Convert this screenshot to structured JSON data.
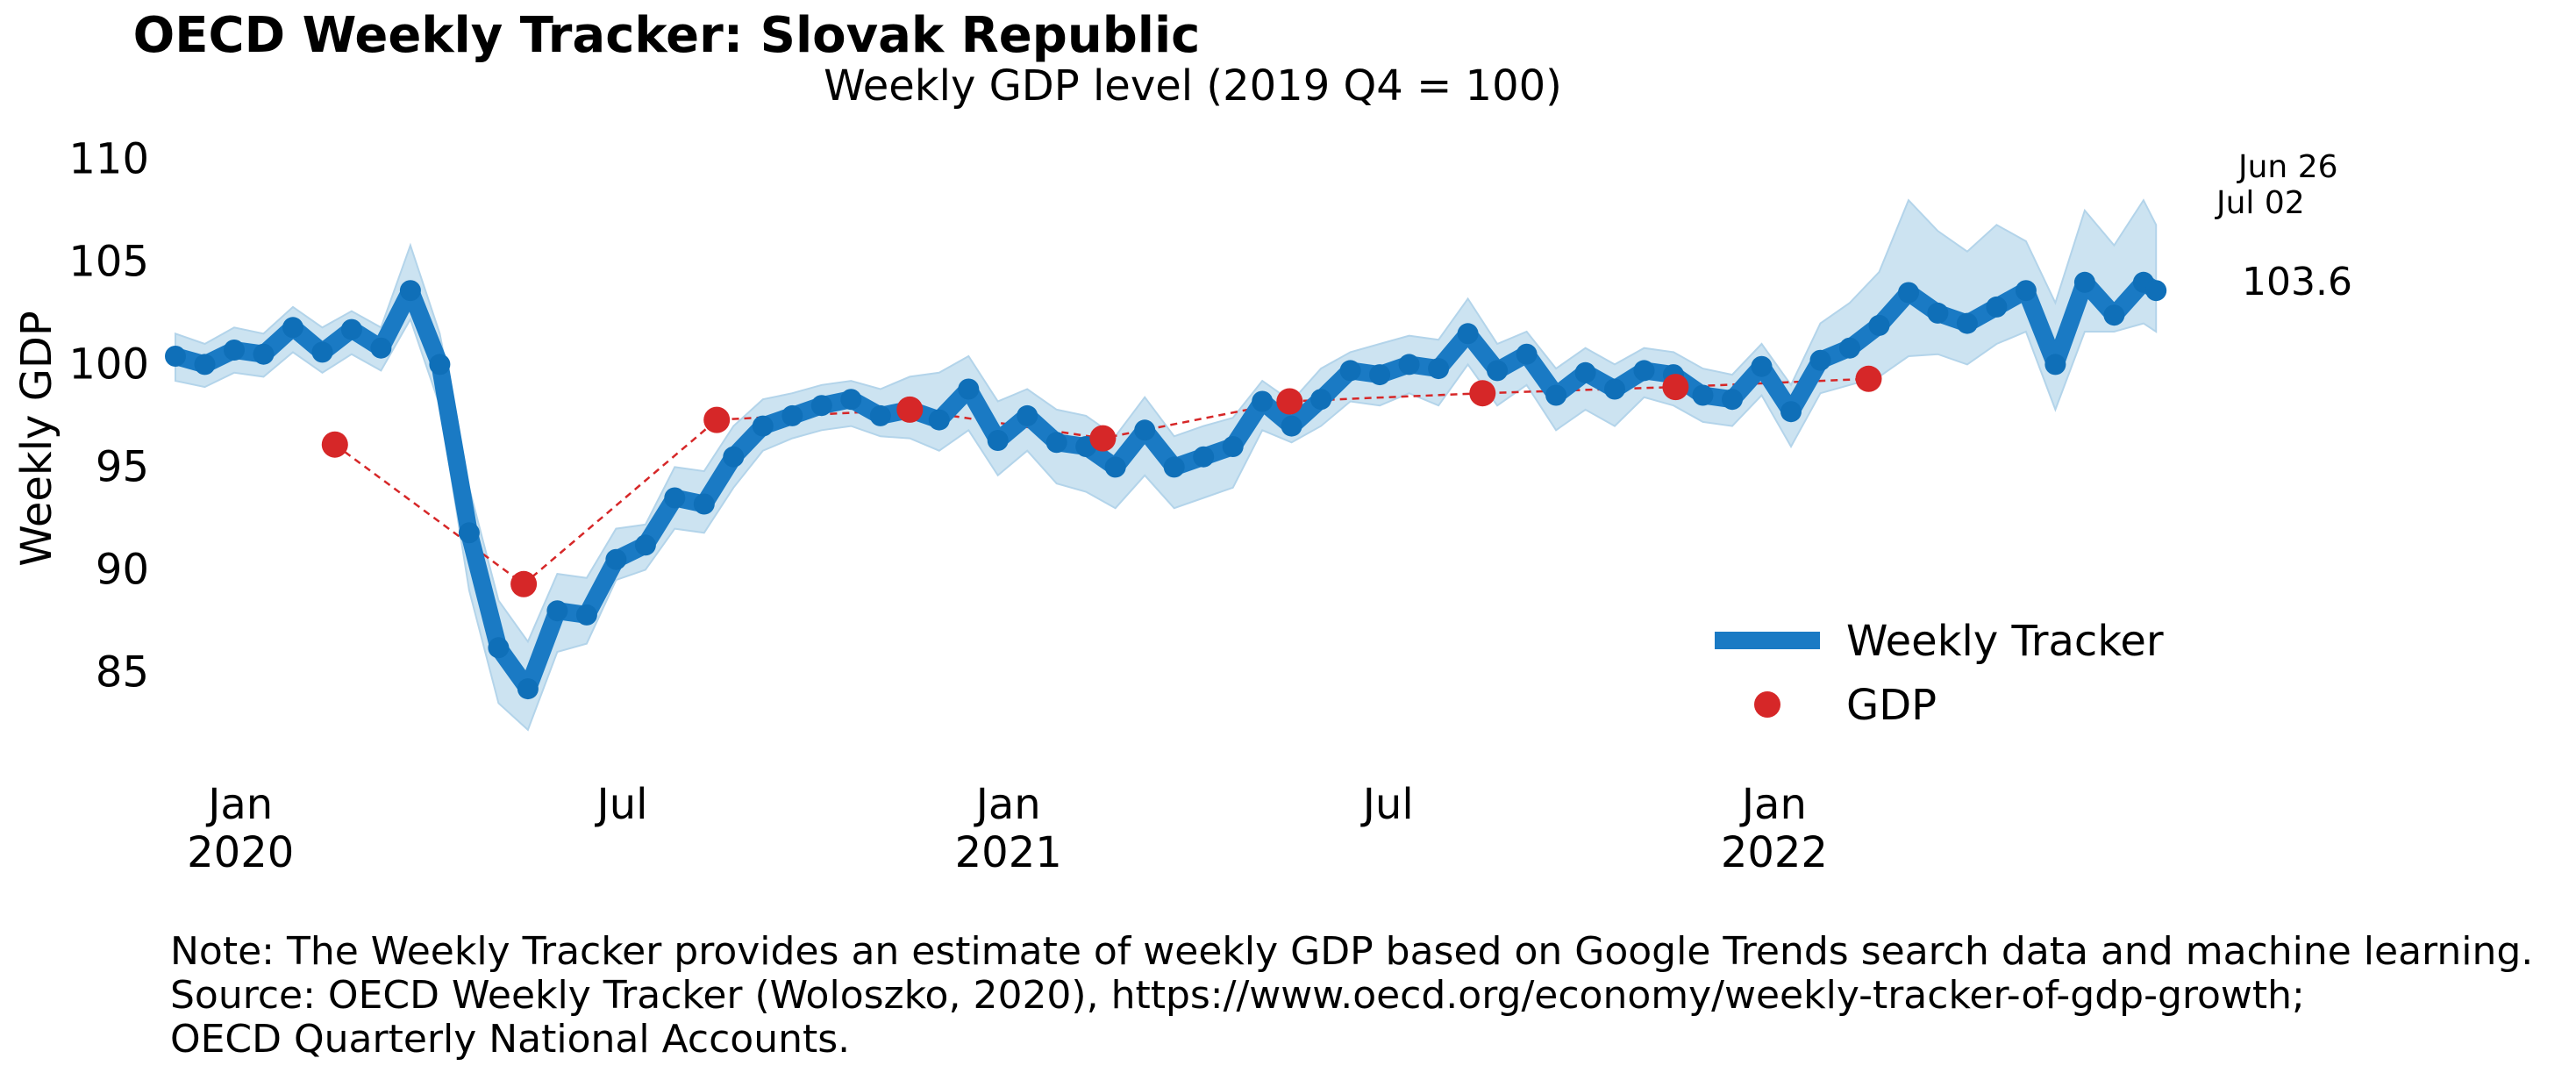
{
  "chart_data": {
    "type": "line",
    "title": "OECD Weekly Tracker: Slovak Republic",
    "subtitle": "Weekly GDP level (2019 Q4 = 100)",
    "ylabel": "Weekly GDP",
    "xlabel": "",
    "ylim": [
      81,
      111
    ],
    "yticks": [
      85,
      90,
      95,
      100,
      105,
      110
    ],
    "xticks": [
      {
        "date": "2020-01-01",
        "line1": "Jan",
        "line2": "2020"
      },
      {
        "date": "2020-07-01",
        "line1": "Jul",
        "line2": ""
      },
      {
        "date": "2021-01-01",
        "line1": "Jan",
        "line2": "2021"
      },
      {
        "date": "2021-07-01",
        "line1": "Jul",
        "line2": ""
      },
      {
        "date": "2022-01-01",
        "line1": "Jan",
        "line2": "2022"
      }
    ],
    "xrange": [
      "2019-12-01",
      "2022-08-01"
    ],
    "grid": false,
    "legend_position": "lower-right",
    "series": [
      {
        "name": "Weekly Tracker",
        "kind": "line",
        "color": "#1a7ac4",
        "band_color": "#cce3f1",
        "points": [
          [
            "2019-12-01",
            100.4,
            101.5,
            99.2
          ],
          [
            "2019-12-15",
            100.0,
            101.0,
            98.9
          ],
          [
            "2019-12-29",
            100.7,
            101.8,
            99.6
          ],
          [
            "2020-01-12",
            100.5,
            101.5,
            99.4
          ],
          [
            "2020-01-26",
            101.8,
            102.8,
            100.6
          ],
          [
            "2020-02-09",
            100.6,
            101.8,
            99.6
          ],
          [
            "2020-02-23",
            101.7,
            102.6,
            100.5
          ],
          [
            "2020-03-08",
            100.8,
            101.8,
            99.7
          ],
          [
            "2020-03-22",
            103.6,
            105.8,
            102.2
          ],
          [
            "2020-04-05",
            100.0,
            101.5,
            98.0
          ],
          [
            "2020-04-19",
            91.8,
            94.0,
            89.0
          ],
          [
            "2020-05-03",
            86.2,
            88.5,
            83.5
          ],
          [
            "2020-05-17",
            84.2,
            86.5,
            82.2
          ],
          [
            "2020-05-31",
            88.0,
            89.8,
            86.0
          ],
          [
            "2020-06-14",
            87.8,
            89.6,
            86.4
          ],
          [
            "2020-06-28",
            90.5,
            92.0,
            89.5
          ],
          [
            "2020-07-12",
            91.2,
            92.2,
            90.0
          ],
          [
            "2020-07-26",
            93.5,
            95.0,
            92.0
          ],
          [
            "2020-08-09",
            93.2,
            94.8,
            91.8
          ],
          [
            "2020-08-23",
            95.5,
            97.0,
            94.0
          ],
          [
            "2020-09-06",
            97.0,
            98.3,
            95.8
          ],
          [
            "2020-09-20",
            97.5,
            98.6,
            96.4
          ],
          [
            "2020-10-04",
            98.0,
            99.0,
            96.8
          ],
          [
            "2020-10-18",
            98.3,
            99.2,
            97.0
          ],
          [
            "2020-11-01",
            97.5,
            98.8,
            96.5
          ],
          [
            "2020-11-15",
            97.8,
            99.4,
            96.4
          ],
          [
            "2020-11-29",
            97.3,
            99.6,
            95.8
          ],
          [
            "2020-12-13",
            98.8,
            100.4,
            96.8
          ],
          [
            "2020-12-27",
            96.3,
            98.2,
            94.6
          ],
          [
            "2021-01-10",
            97.5,
            98.8,
            95.8
          ],
          [
            "2021-01-24",
            96.2,
            97.8,
            94.2
          ],
          [
            "2021-02-07",
            96.0,
            97.5,
            93.8
          ],
          [
            "2021-02-21",
            95.0,
            96.5,
            93.0
          ],
          [
            "2021-03-07",
            96.8,
            98.4,
            94.6
          ],
          [
            "2021-03-21",
            95.0,
            96.5,
            93.0
          ],
          [
            "2021-04-04",
            95.5,
            97.0,
            93.5
          ],
          [
            "2021-04-18",
            96.0,
            97.4,
            94.0
          ],
          [
            "2021-05-02",
            98.2,
            99.2,
            96.8
          ],
          [
            "2021-05-16",
            97.0,
            98.2,
            96.2
          ],
          [
            "2021-05-30",
            98.3,
            99.8,
            97.0
          ],
          [
            "2021-06-13",
            99.7,
            100.6,
            98.2
          ],
          [
            "2021-06-27",
            99.5,
            101.0,
            98.0
          ],
          [
            "2021-07-11",
            100.0,
            101.4,
            98.6
          ],
          [
            "2021-07-25",
            99.8,
            101.2,
            98.0
          ],
          [
            "2021-08-08",
            101.5,
            103.2,
            100.0
          ],
          [
            "2021-08-22",
            99.7,
            101.0,
            98.0
          ],
          [
            "2021-09-05",
            100.5,
            101.6,
            99.0
          ],
          [
            "2021-09-19",
            98.5,
            99.8,
            96.8
          ],
          [
            "2021-10-03",
            99.6,
            100.8,
            97.8
          ],
          [
            "2021-10-17",
            98.8,
            100.0,
            97.0
          ],
          [
            "2021-10-31",
            99.7,
            100.8,
            98.4
          ],
          [
            "2021-11-14",
            99.5,
            100.6,
            98.0
          ],
          [
            "2021-11-28",
            98.5,
            99.8,
            97.2
          ],
          [
            "2021-12-12",
            98.3,
            99.5,
            97.0
          ],
          [
            "2021-12-26",
            99.9,
            101.0,
            98.5
          ],
          [
            "2022-01-09",
            97.7,
            99.0,
            96.0
          ],
          [
            "2022-01-23",
            100.2,
            102.0,
            98.6
          ],
          [
            "2022-02-06",
            100.8,
            103.0,
            99.0
          ],
          [
            "2022-02-20",
            101.9,
            104.5,
            99.4
          ],
          [
            "2022-03-06",
            103.5,
            108.0,
            100.4
          ],
          [
            "2022-03-20",
            102.5,
            106.5,
            100.5
          ],
          [
            "2022-04-03",
            102.0,
            105.5,
            100.0
          ],
          [
            "2022-04-17",
            102.8,
            106.8,
            101.0
          ],
          [
            "2022-05-01",
            103.6,
            106.0,
            101.6
          ],
          [
            "2022-05-15",
            100.0,
            103.0,
            97.8
          ],
          [
            "2022-05-29",
            104.0,
            107.5,
            101.6
          ],
          [
            "2022-06-12",
            102.4,
            105.8,
            101.6
          ],
          [
            "2022-06-26",
            104.0,
            108.0,
            102.0
          ],
          [
            "2022-07-02",
            103.6,
            106.8,
            101.6
          ]
        ]
      },
      {
        "name": "GDP",
        "kind": "scatter",
        "color": "#d62728",
        "points": [
          [
            "2020-02-15",
            96.1
          ],
          [
            "2020-05-15",
            89.3
          ],
          [
            "2020-08-15",
            97.3
          ],
          [
            "2020-11-15",
            97.8
          ],
          [
            "2021-02-15",
            96.4
          ],
          [
            "2021-05-15",
            98.2
          ],
          [
            "2021-08-15",
            98.6
          ],
          [
            "2021-11-15",
            98.9
          ],
          [
            "2022-02-15",
            99.3
          ]
        ]
      }
    ],
    "annotations": {
      "end_value": "103.6",
      "end_date_1": "Jun 26",
      "end_date_2": "Jul 02"
    }
  },
  "notes": {
    "line1": "Note: The Weekly Tracker provides an estimate of weekly GDP based on Google Trends search data and machine learning.",
    "line2": "Source: OECD Weekly Tracker (Woloszko, 2020), https://www.oecd.org/economy/weekly-tracker-of-gdp-growth;",
    "line3": "OECD Quarterly National Accounts."
  }
}
